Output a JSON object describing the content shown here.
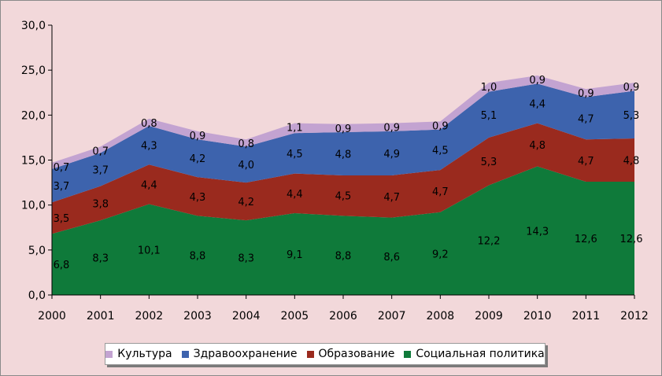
{
  "chart_data": {
    "type": "area",
    "stacked": true,
    "title": "",
    "xlabel": "",
    "ylabel": "",
    "x": [
      "2000",
      "2001",
      "2002",
      "2003",
      "2004",
      "2005",
      "2006",
      "2007",
      "2008",
      "2009",
      "2010",
      "2011",
      "2012"
    ],
    "ylim": [
      0,
      30
    ],
    "yticks": [
      "0,0",
      "5,0",
      "10,0",
      "15,0",
      "20,0",
      "25,0",
      "30,0"
    ],
    "grid": false,
    "legend_position": "bottom",
    "series": [
      {
        "name": "Социальная политика",
        "color": "#0f7a3a",
        "values": [
          6.8,
          8.3,
          10.1,
          8.8,
          8.3,
          9.1,
          8.8,
          8.6,
          9.2,
          12.2,
          14.3,
          12.6,
          12.6
        ],
        "labels": [
          "6,8",
          "8,3",
          "10,1",
          "8,8",
          "8,3",
          "9,1",
          "8,8",
          "8,6",
          "9,2",
          "12,2",
          "14,3",
          "12,6",
          "12,6"
        ]
      },
      {
        "name": "Образование",
        "color": "#9a2a1e",
        "values": [
          3.5,
          3.8,
          4.4,
          4.3,
          4.2,
          4.4,
          4.5,
          4.7,
          4.7,
          5.3,
          4.8,
          4.7,
          4.8
        ],
        "labels": [
          "3,5",
          "3,8",
          "4,4",
          "4,3",
          "4,2",
          "4,4",
          "4,5",
          "4,7",
          "4,7",
          "5,3",
          "4,8",
          "4,7",
          "4,8"
        ]
      },
      {
        "name": "Здравоохранение",
        "color": "#3d63ad",
        "values": [
          3.7,
          3.7,
          4.3,
          4.2,
          4.0,
          4.5,
          4.8,
          4.9,
          4.5,
          5.1,
          4.4,
          4.7,
          5.3
        ],
        "labels": [
          "3,7",
          "3,7",
          "4,3",
          "4,2",
          "4,0",
          "4,5",
          "4,8",
          "4,9",
          "4,5",
          "5,1",
          "4,4",
          "4,7",
          "5,3"
        ]
      },
      {
        "name": "Культура",
        "color": "#c3a3d1",
        "values": [
          0.7,
          0.7,
          0.8,
          0.9,
          0.8,
          1.1,
          0.9,
          0.9,
          0.9,
          1.0,
          0.9,
          0.9,
          0.9
        ],
        "labels": [
          "0,7",
          "0,7",
          "0,8",
          "0,9",
          "0,8",
          "1,1",
          "0,9",
          "0,9",
          "0,9",
          "1,0",
          "0,9",
          "0,9",
          "0,9"
        ]
      }
    ],
    "legend_order": [
      "Культура",
      "Здравоохранение",
      "Образование",
      "Социальная политика"
    ]
  }
}
